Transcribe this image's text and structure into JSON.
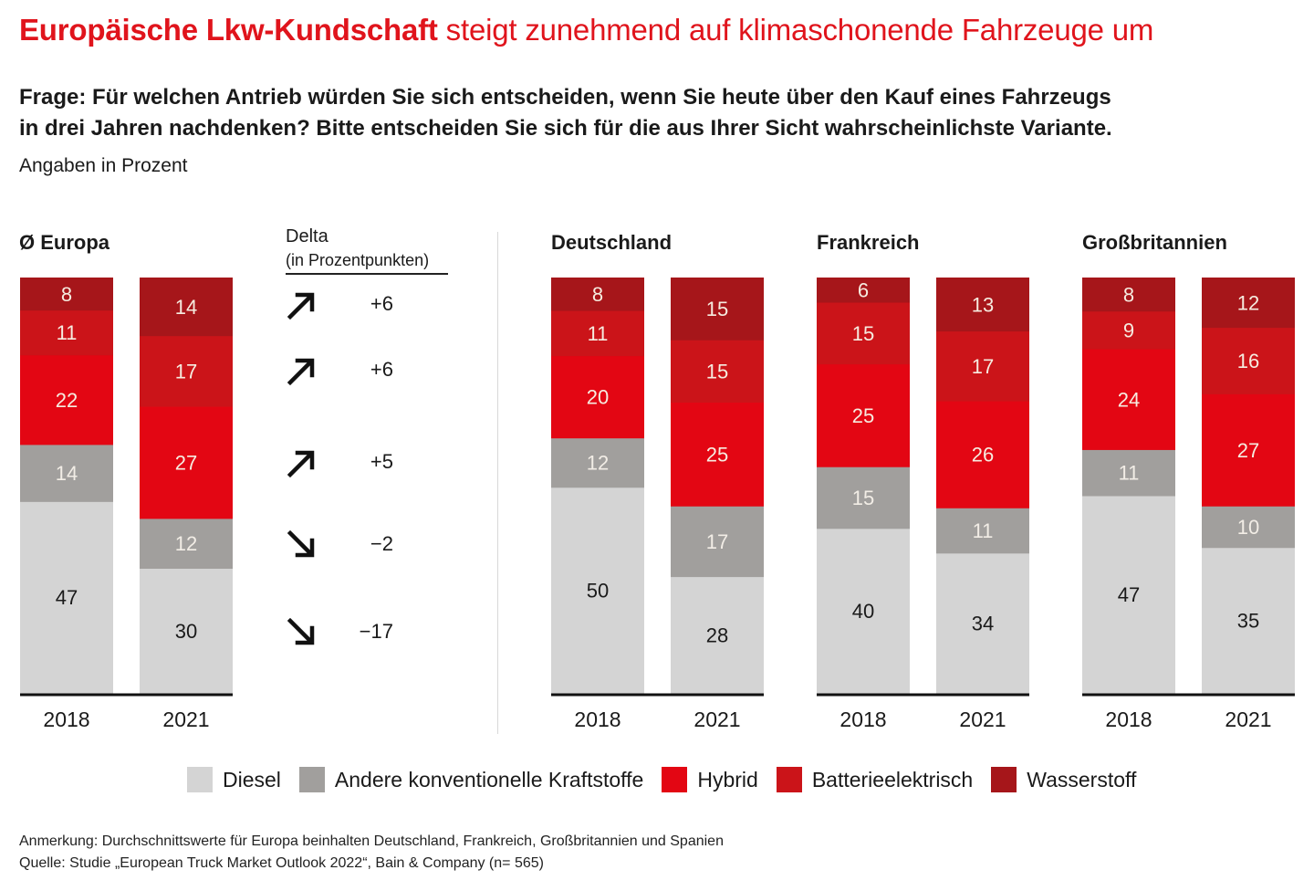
{
  "header": {
    "title_bold": "Europäische Lkw-Kundschaft",
    "title_rest": " steigt zunehmend auf klimaschonende Fahrzeuge um",
    "question_line1": "Frage: Für welchen Antrieb würden Sie sich entscheiden, wenn Sie heute über den Kauf eines Fahrzeugs",
    "question_line2": "in drei Jahren nachdenken? Bitte entscheiden Sie sich für die aus Ihrer Sicht wahrscheinlichste Variante.",
    "unit_note": "Angaben in Prozent"
  },
  "delta": {
    "title": "Delta",
    "subtitle": "(in Prozentpunkten)",
    "rows": [
      {
        "series": "Wasserstoff",
        "direction": "up",
        "value": "+6"
      },
      {
        "series": "Batterieelektrisch",
        "direction": "up",
        "value": "+6"
      },
      {
        "series": "Hybrid",
        "direction": "up",
        "value": "+5"
      },
      {
        "series": "Andere konventionelle Kraftstoffe",
        "direction": "down",
        "value": "−2"
      },
      {
        "series": "Diesel",
        "direction": "down",
        "value": "−17"
      }
    ]
  },
  "chart_data": {
    "type": "bar",
    "stacked": true,
    "normalized_percent": true,
    "title": "Europäische Lkw-Kundschaft steigt zunehmend auf klimaschonende Fahrzeuge um",
    "ylabel": "Angaben in Prozent",
    "series_order_bottom_to_top": [
      "Diesel",
      "Andere konventionelle Kraftstoffe",
      "Hybrid",
      "Batterieelektrisch",
      "Wasserstoff"
    ],
    "colors": {
      "Diesel": "#d4d4d4",
      "Andere konventionelle Kraftstoffe": "#a19f9d",
      "Hybrid": "#e30613",
      "Batterieelektrisch": "#cb1419",
      "Wasserstoff": "#a6161a"
    },
    "label_colors": {
      "Diesel": "#1a1a1a",
      "Andere konventionelle Kraftstoffe": "#f2ede6",
      "Hybrid": "#f6ece0",
      "Batterieelektrisch": "#f6ece0",
      "Wasserstoff": "#f6ece0"
    },
    "groups": [
      {
        "name": "Ø Europa",
        "categories": [
          "2018",
          "2021"
        ],
        "values": {
          "2018": {
            "Diesel": 47,
            "Andere konventionelle Kraftstoffe": 14,
            "Hybrid": 22,
            "Batterieelektrisch": 11,
            "Wasserstoff": 8
          },
          "2021": {
            "Diesel": 30,
            "Andere konventionelle Kraftstoffe": 12,
            "Hybrid": 27,
            "Batterieelektrisch": 17,
            "Wasserstoff": 14
          }
        }
      },
      {
        "name": "Deutschland",
        "categories": [
          "2018",
          "2021"
        ],
        "values": {
          "2018": {
            "Diesel": 50,
            "Andere konventionelle Kraftstoffe": 12,
            "Hybrid": 20,
            "Batterieelektrisch": 11,
            "Wasserstoff": 8
          },
          "2021": {
            "Diesel": 28,
            "Andere konventionelle Kraftstoffe": 17,
            "Hybrid": 25,
            "Batterieelektrisch": 15,
            "Wasserstoff": 15
          }
        }
      },
      {
        "name": "Frankreich",
        "categories": [
          "2018",
          "2021"
        ],
        "values": {
          "2018": {
            "Diesel": 40,
            "Andere konventionelle Kraftstoffe": 15,
            "Hybrid": 25,
            "Batterieelektrisch": 15,
            "Wasserstoff": 6
          },
          "2021": {
            "Diesel": 34,
            "Andere konventionelle Kraftstoffe": 11,
            "Hybrid": 26,
            "Batterieelektrisch": 17,
            "Wasserstoff": 13
          }
        }
      },
      {
        "name": "Großbritannien",
        "categories": [
          "2018",
          "2021"
        ],
        "values": {
          "2018": {
            "Diesel": 47,
            "Andere konventionelle Kraftstoffe": 11,
            "Hybrid": 24,
            "Batterieelektrisch": 9,
            "Wasserstoff": 8
          },
          "2021": {
            "Diesel": 35,
            "Andere konventionelle Kraftstoffe": 10,
            "Hybrid": 27,
            "Batterieelektrisch": 16,
            "Wasserstoff": 12
          }
        }
      }
    ],
    "legend": [
      "Diesel",
      "Andere konventionelle Kraftstoffe",
      "Hybrid",
      "Batterieelektrisch",
      "Wasserstoff"
    ],
    "legend_position": "bottom-center",
    "grid": false
  },
  "footer": {
    "note": "Anmerkung: Durchschnittswerte für Europa beinhalten Deutschland, Frankreich, Großbritannien und Spanien",
    "source": "Quelle: Studie „European Truck Market Outlook 2022“, Bain & Company (n= 565)"
  }
}
